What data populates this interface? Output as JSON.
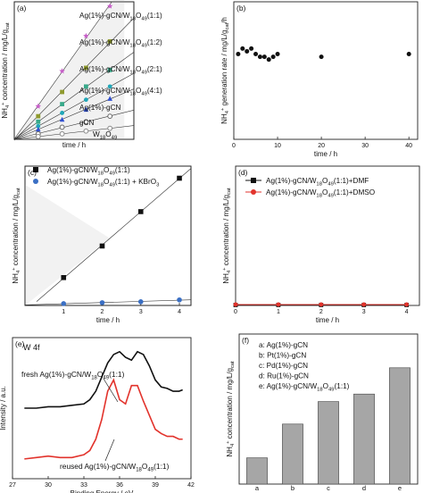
{
  "chart_data": [
    {
      "panel": "(a)",
      "type": "scatter",
      "xlabel": "time / h",
      "ylabel": "NH4+ concentration / mg/L/g_cat",
      "xlim": [
        0,
        5
      ],
      "ylim": [
        0,
        12.5
      ],
      "series": [
        {
          "name": "Ag(1%)-gCN/W18O49(1:1)",
          "x": [
            1,
            2,
            3,
            4
          ],
          "y": [
            3.0,
            6.2,
            9.4,
            12.1
          ],
          "marker": "star",
          "color": "#c75fc9"
        },
        {
          "name": "Ag(1%)-gCN/W18O49(1:2)",
          "x": [
            1,
            2,
            3,
            4
          ],
          "y": [
            2.1,
            4.3,
            6.5,
            8.9
          ],
          "marker": "square",
          "color": "#8f9a2e"
        },
        {
          "name": "Ag(1%)-gCN/W18O49(2:1)",
          "x": [
            1,
            2,
            3,
            4
          ],
          "y": [
            1.6,
            3.2,
            4.8,
            6.3
          ],
          "marker": "square",
          "color": "#39a98a"
        },
        {
          "name": "Ag(1%)-gCN/W18O49(4:1)",
          "x": [
            1,
            2,
            3,
            4
          ],
          "y": [
            1.2,
            2.4,
            3.6,
            4.8
          ],
          "marker": "circle",
          "color": "#20a7b8"
        },
        {
          "name": "Ag(1%)-gCN",
          "x": [
            1,
            2,
            3,
            4
          ],
          "y": [
            0.9,
            1.8,
            2.7,
            3.7
          ],
          "marker": "triangle",
          "color": "#2f4fd1"
        },
        {
          "name": "gCN",
          "x": [
            1,
            2,
            3,
            4
          ],
          "y": [
            0.5,
            1.1,
            1.6,
            2.1
          ],
          "marker": "open-circle",
          "color": "#666666"
        },
        {
          "name": "W18O49",
          "x": [
            1,
            2,
            3,
            4
          ],
          "y": [
            0.25,
            0.5,
            0.75,
            1.0
          ],
          "marker": "open-circle",
          "color": "#888888"
        }
      ]
    },
    {
      "panel": "(b)",
      "type": "scatter",
      "xlabel": "time / h",
      "ylabel": "NH4+ generation rate / mg/L/g_cat/h",
      "xlim": [
        0,
        42
      ],
      "ylim": [
        0,
        5
      ],
      "xticks": [
        0,
        10,
        20,
        30,
        40
      ],
      "series": [
        {
          "x": [
            1,
            2,
            3,
            4,
            5,
            6,
            7,
            8,
            9,
            10,
            20,
            40
          ],
          "y": [
            3.1,
            3.3,
            3.2,
            3.3,
            3.1,
            3.0,
            3.0,
            2.9,
            3.0,
            3.1,
            3.0,
            3.1
          ],
          "marker": "circle",
          "color": "#111111"
        }
      ]
    },
    {
      "panel": "(c)",
      "type": "scatter",
      "xlabel": "time / h",
      "ylabel": "NH4+ concentration / mg/L/g_cat",
      "xlim": [
        0,
        4.3
      ],
      "ylim": [
        0,
        15
      ],
      "xticks": [
        1,
        2,
        3,
        4
      ],
      "series": [
        {
          "name": "Ag(1%)-gCN/W18O49(1:1)",
          "x": [
            1,
            2,
            3,
            4
          ],
          "y": [
            3.0,
            6.4,
            10.1,
            13.7
          ],
          "marker": "square",
          "color": "#111111"
        },
        {
          "name": "Ag(1%)-gCN/W18O49(1:1) + KBrO3",
          "x": [
            1,
            2,
            3,
            4
          ],
          "y": [
            0.2,
            0.3,
            0.4,
            0.6
          ],
          "marker": "circle",
          "color": "#3a6fc4"
        }
      ]
    },
    {
      "panel": "(d)",
      "type": "scatter",
      "xlabel": "time / h",
      "ylabel": "NH4+ concentration / mg/L/g_cat",
      "xlim": [
        0,
        4.3
      ],
      "ylim": [
        0,
        15
      ],
      "xticks": [
        0,
        1,
        2,
        3,
        4
      ],
      "series": [
        {
          "name": "Ag(1%)-gCN/W18O49(1:1)+DMF",
          "x": [
            0,
            1,
            2,
            3,
            4
          ],
          "y": [
            0.05,
            0.05,
            0.05,
            0.05,
            0.05
          ],
          "marker": "square",
          "color": "#111111"
        },
        {
          "name": "Ag(1%)-gCN/W18O49(1:1)+DMSO",
          "x": [
            0,
            1,
            2,
            3,
            4
          ],
          "y": [
            0.1,
            0.1,
            0.1,
            0.1,
            0.1
          ],
          "marker": "circle",
          "color": "#e2332c"
        }
      ]
    },
    {
      "panel": "(e)",
      "type": "line",
      "title": "W 4f",
      "xlabel": "Binding Energy / eV",
      "ylabel": "Intensity / a.u.",
      "xlim": [
        27,
        42
      ],
      "xticks": [
        27,
        30,
        33,
        36,
        39,
        42
      ],
      "series": [
        {
          "name": "fresh Ag(1%)-gCN/W18O49(1:1)",
          "color": "#111111",
          "x": [
            28,
            29,
            30,
            31,
            32,
            33,
            33.5,
            34,
            34.5,
            35,
            35.5,
            36,
            36.5,
            37,
            37.5,
            38,
            38.5,
            39,
            39.5,
            40,
            40.5,
            41,
            41.3
          ],
          "y": [
            0.5,
            0.5,
            0.51,
            0.51,
            0.52,
            0.53,
            0.56,
            0.62,
            0.72,
            0.82,
            0.88,
            0.9,
            0.86,
            0.84,
            0.9,
            0.88,
            0.8,
            0.7,
            0.65,
            0.64,
            0.62,
            0.62,
            0.63
          ]
        },
        {
          "name": "reused Ag(1%)-gCN/W18O49(1:1)",
          "color": "#e2332c",
          "x": [
            28,
            29,
            30,
            31,
            32,
            33,
            33.5,
            34,
            34.5,
            35,
            35.5,
            36,
            36.5,
            37,
            37.5,
            38,
            38.5,
            39,
            39.5,
            40,
            40.5,
            41,
            41.3
          ],
          "y": [
            0.14,
            0.15,
            0.16,
            0.15,
            0.15,
            0.17,
            0.2,
            0.28,
            0.42,
            0.62,
            0.7,
            0.56,
            0.53,
            0.66,
            0.66,
            0.55,
            0.45,
            0.35,
            0.32,
            0.3,
            0.3,
            0.28,
            0.28
          ]
        }
      ]
    },
    {
      "panel": "(f)",
      "type": "bar",
      "ylabel": "NH4+ concentration / mg/L/g_cat",
      "categories": [
        "a",
        "b",
        "c",
        "d",
        "e"
      ],
      "values": [
        0.7,
        1.6,
        2.2,
        2.4,
        3.1
      ],
      "ylim": [
        0,
        4
      ],
      "color": "#a6a6a6",
      "legend": [
        "a: Ag(1%)-gCN",
        "b: Pt(1%)-gCN",
        "c: Pd(1%)-gCN",
        "d: Ru(1%)-gCN",
        "e: Ag(1%)-gCN/W18O49(1:1)"
      ]
    }
  ]
}
